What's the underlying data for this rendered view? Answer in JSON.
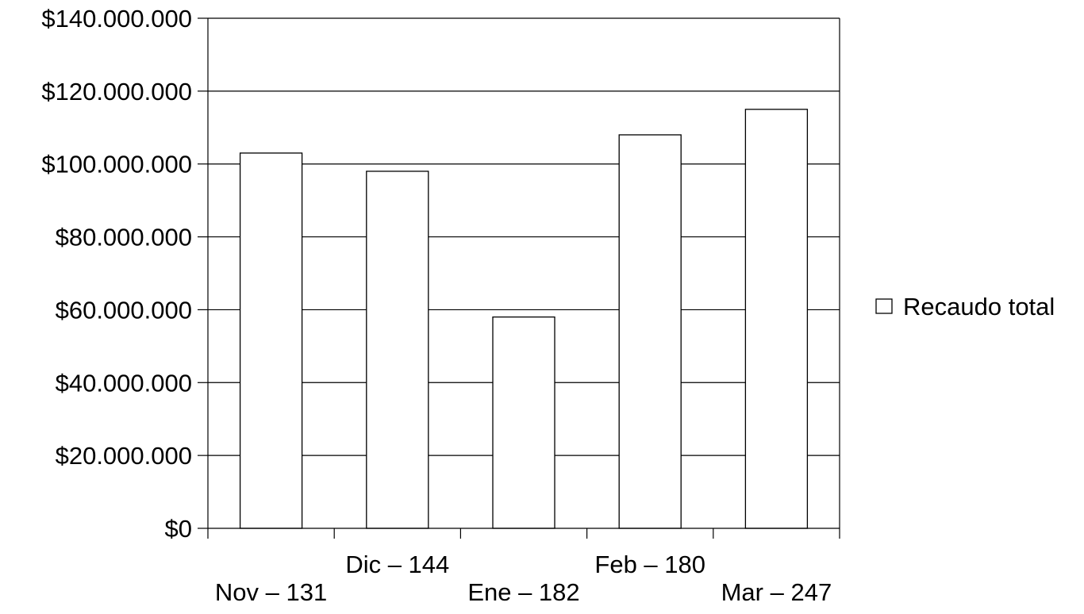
{
  "chart_data": {
    "type": "bar",
    "categories": [
      "Nov – 131",
      "Dic – 144",
      "Ene – 182",
      "Feb – 180",
      "Mar – 247"
    ],
    "series": [
      {
        "name": "Recaudo total",
        "values": [
          103000000,
          98000000,
          58000000,
          108000000,
          115000000
        ]
      }
    ],
    "ylim": [
      0,
      140000000
    ],
    "yticks": [
      0,
      20000000,
      40000000,
      60000000,
      80000000,
      100000000,
      120000000,
      140000000
    ],
    "ytick_labels": [
      "$0",
      "$20.000.000",
      "$40.000.000",
      "$60.000.000",
      "$80.000.000",
      "$100.000.000",
      "$120.000.000",
      "$140.000.000"
    ],
    "title": "",
    "xlabel": "",
    "ylabel": "",
    "grid": true,
    "legend_position": "right",
    "colors": {
      "bar_fill": "#ffffff",
      "bar_stroke": "#000000",
      "grid": "#000000",
      "axis": "#000000"
    }
  }
}
